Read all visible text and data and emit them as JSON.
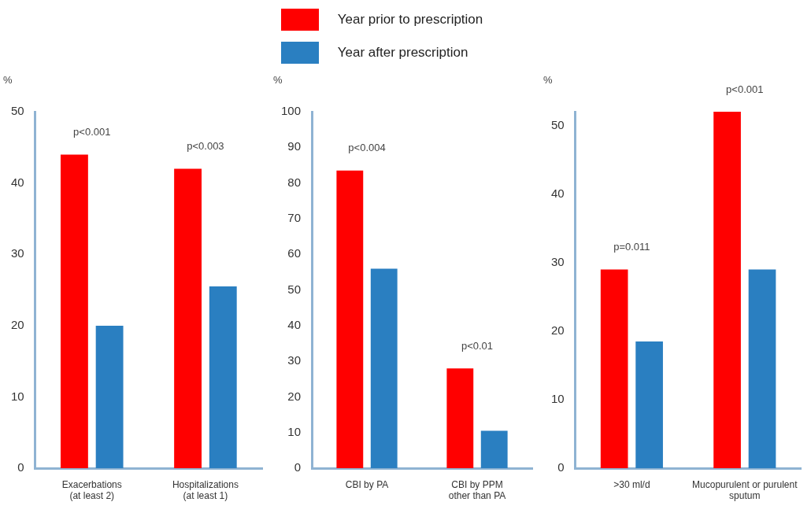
{
  "chart_data": [
    {
      "type": "bar",
      "ylabel": "%",
      "categories": [
        "Exacerbations\n(at least 2)",
        "Hospitalizations\n(at least 1)"
      ],
      "series": [
        {
          "name": "Year prior to prescription",
          "color": "#ff0000",
          "values": [
            44,
            42
          ]
        },
        {
          "name": "Year after prescription",
          "color": "#2a7fc1",
          "values": [
            20,
            25.5
          ]
        }
      ],
      "ylim": [
        0,
        50
      ],
      "yticks": [
        0,
        10,
        20,
        30,
        40,
        50
      ],
      "grid": false,
      "legend": "top",
      "annotations": [
        "p<0.001",
        "p<0.003"
      ]
    },
    {
      "type": "bar",
      "ylabel": "%",
      "categories": [
        "CBI by PA",
        "CBI by PPM\nother than PA"
      ],
      "series": [
        {
          "color": "#ff0000",
          "values": [
            83.5,
            28
          ]
        },
        {
          "color": "#2a7fc1",
          "values": [
            56,
            10.5
          ]
        }
      ],
      "ylim": [
        0,
        100
      ],
      "yticks": [
        0,
        10,
        20,
        30,
        40,
        50,
        60,
        70,
        80,
        90,
        100
      ],
      "grid": false,
      "annotations": [
        "p<0.004",
        "p<0.01"
      ]
    },
    {
      "type": "bar",
      "ylabel": "%",
      "categories": [
        ">30 ml/d",
        "Mucopurulent or purulent\nsputum"
      ],
      "series": [
        {
          "color": "#ff0000",
          "values": [
            29,
            52
          ]
        },
        {
          "color": "#2a7fc1",
          "values": [
            18.5,
            29
          ]
        }
      ],
      "ylim": [
        0,
        52
      ],
      "yticks": [
        0,
        10,
        20,
        30,
        40,
        50
      ],
      "grid": false,
      "annotations": [
        "p=0.011",
        "p<0.001"
      ]
    }
  ]
}
